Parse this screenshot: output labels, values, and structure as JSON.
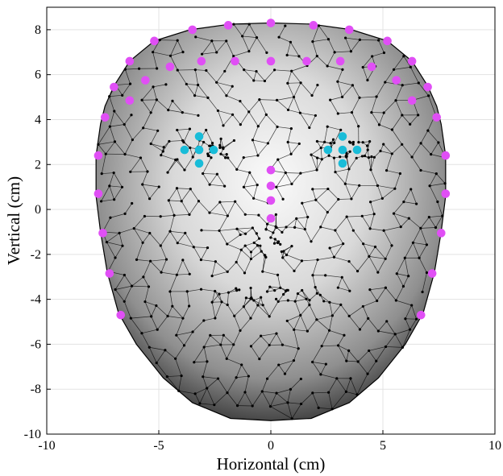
{
  "chart_data": {
    "type": "scatter",
    "title": "",
    "xlabel": "Horizontal (cm)",
    "ylabel": "Vertical (cm)",
    "xlim": [
      -10,
      10
    ],
    "ylim": [
      -10,
      9
    ],
    "xticks": [
      -10,
      -5,
      0,
      5,
      10
    ],
    "yticks": [
      -10,
      -8,
      -6,
      -4,
      -2,
      0,
      2,
      4,
      6,
      8
    ],
    "xtick_labels": [
      "-10",
      "-5",
      "0",
      "5",
      "10"
    ],
    "ytick_labels": [
      "-10",
      "-8",
      "-6",
      "-4",
      "-2",
      "0",
      "2",
      "4",
      "6",
      "8"
    ],
    "grid": true,
    "legend": "none",
    "background_mesh": {
      "kind": "triangulated face surface",
      "shading": "grayscale",
      "outline": [
        [
          -7.6,
          3.8
        ],
        [
          -7.4,
          4.6
        ],
        [
          -7.0,
          5.5
        ],
        [
          -6.3,
          6.6
        ],
        [
          -5.2,
          7.5
        ],
        [
          -3.6,
          8.0
        ],
        [
          -1.8,
          8.25
        ],
        [
          0,
          8.3
        ],
        [
          1.8,
          8.25
        ],
        [
          3.6,
          8.0
        ],
        [
          5.2,
          7.5
        ],
        [
          6.3,
          6.6
        ],
        [
          7.0,
          5.5
        ],
        [
          7.4,
          4.6
        ],
        [
          7.6,
          3.8
        ],
        [
          7.8,
          2.4
        ],
        [
          7.8,
          0.6
        ],
        [
          7.6,
          -1.0
        ],
        [
          7.3,
          -2.8
        ],
        [
          6.8,
          -4.6
        ],
        [
          6.0,
          -6.0
        ],
        [
          4.8,
          -7.5
        ],
        [
          3.5,
          -8.6
        ],
        [
          1.8,
          -9.3
        ],
        [
          0,
          -9.4
        ],
        [
          -1.8,
          -9.3
        ],
        [
          -3.5,
          -8.6
        ],
        [
          -4.8,
          -7.5
        ],
        [
          -6.0,
          -6.0
        ],
        [
          -6.8,
          -4.6
        ],
        [
          -7.3,
          -2.8
        ],
        [
          -7.6,
          -1.0
        ],
        [
          -7.8,
          0.6
        ],
        [
          -7.8,
          2.4
        ]
      ]
    },
    "series": [
      {
        "color": "#e04ff5",
        "points": [
          [
            -5.2,
            7.5
          ],
          [
            -3.5,
            8.0
          ],
          [
            -1.9,
            8.2
          ],
          [
            0,
            8.3
          ],
          [
            1.9,
            8.2
          ],
          [
            3.5,
            8.0
          ],
          [
            5.2,
            7.5
          ],
          [
            -6.3,
            6.6
          ],
          [
            -4.5,
            6.35
          ],
          [
            -3.1,
            6.6
          ],
          [
            -1.6,
            6.6
          ],
          [
            0,
            6.6
          ],
          [
            1.6,
            6.6
          ],
          [
            3.1,
            6.6
          ],
          [
            4.5,
            6.35
          ],
          [
            6.3,
            6.6
          ],
          [
            -7.0,
            5.45
          ],
          [
            -5.6,
            5.75
          ],
          [
            5.6,
            5.75
          ],
          [
            7.0,
            5.45
          ],
          [
            -6.3,
            4.85
          ],
          [
            6.3,
            4.85
          ],
          [
            -7.4,
            4.1
          ],
          [
            7.4,
            4.1
          ],
          [
            -7.7,
            2.4
          ],
          [
            7.8,
            2.4
          ],
          [
            -7.7,
            0.7
          ],
          [
            7.8,
            0.7
          ],
          [
            -7.5,
            -1.05
          ],
          [
            7.6,
            -1.05
          ],
          [
            -7.2,
            -2.85
          ],
          [
            7.2,
            -2.85
          ],
          [
            -6.7,
            -4.7
          ],
          [
            6.7,
            -4.7
          ],
          [
            0,
            1.75
          ],
          [
            0,
            1.05
          ],
          [
            0,
            0.4
          ],
          [
            0,
            -0.4
          ]
        ]
      },
      {
        "color": "#19bcd8",
        "points": [
          [
            -3.2,
            3.25
          ],
          [
            -3.85,
            2.65
          ],
          [
            -3.2,
            2.65
          ],
          [
            -2.55,
            2.65
          ],
          [
            -3.2,
            2.05
          ],
          [
            3.2,
            3.25
          ],
          [
            2.55,
            2.65
          ],
          [
            3.2,
            2.65
          ],
          [
            3.85,
            2.65
          ],
          [
            3.2,
            2.05
          ]
        ]
      }
    ]
  }
}
